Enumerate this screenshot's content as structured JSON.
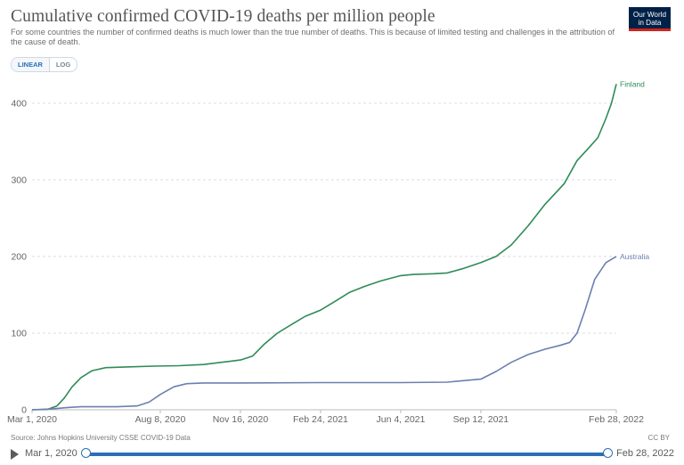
{
  "header": {
    "title": "Cumulative confirmed COVID-19 deaths per million people",
    "subtitle": "For some countries the number of confirmed deaths is much lower than the true number of deaths. This is because of limited testing and challenges in the attribution of the cause of death.",
    "logo_line1": "Our World",
    "logo_line2": "in Data"
  },
  "controls": {
    "linear_label": "LINEAR",
    "log_label": "LOG",
    "selected": "LINEAR"
  },
  "footer": {
    "source": "Source: Johns Hopkins University CSSE COVID-19 Data",
    "license": "CC BY"
  },
  "timeline": {
    "start_label": "Mar 1, 2020",
    "end_label": "Feb 28, 2022",
    "start_position": 0,
    "end_position": 1
  },
  "colors": {
    "finland": "#2e8b57",
    "australia": "#6d7fb0",
    "grid": "#dddddd",
    "accent": "#2c6fb5"
  },
  "chart_data": {
    "type": "line",
    "title": "Cumulative confirmed COVID-19 deaths per million people",
    "ylim": [
      0,
      430
    ],
    "yticks": [
      0,
      100,
      200,
      300,
      400
    ],
    "xlim": [
      "2020-03-01",
      "2022-02-28"
    ],
    "xticks": [
      {
        "date": "2020-03-01",
        "label": "Mar 1, 2020"
      },
      {
        "date": "2020-08-08",
        "label": "Aug 8, 2020"
      },
      {
        "date": "2020-11-16",
        "label": "Nov 16, 2020"
      },
      {
        "date": "2021-02-24",
        "label": "Feb 24, 2021"
      },
      {
        "date": "2021-06-04",
        "label": "Jun 4, 2021"
      },
      {
        "date": "2021-09-12",
        "label": "Sep 12, 2021"
      },
      {
        "date": "2022-02-28",
        "label": "Feb 28, 2022"
      }
    ],
    "grid": "horizontal",
    "legend": "end-of-line labels",
    "series": [
      {
        "name": "Finland",
        "color": "#2e8b57",
        "points": [
          [
            "2020-03-01",
            0
          ],
          [
            "2020-03-20",
            0.5
          ],
          [
            "2020-04-01",
            5
          ],
          [
            "2020-04-10",
            15
          ],
          [
            "2020-04-20",
            30
          ],
          [
            "2020-05-01",
            42
          ],
          [
            "2020-05-15",
            51
          ],
          [
            "2020-06-01",
            55
          ],
          [
            "2020-07-01",
            56
          ],
          [
            "2020-08-01",
            57
          ],
          [
            "2020-09-01",
            57.5
          ],
          [
            "2020-10-01",
            59
          ],
          [
            "2020-11-01",
            63
          ],
          [
            "2020-11-16",
            65
          ],
          [
            "2020-12-01",
            70
          ],
          [
            "2020-12-15",
            85
          ],
          [
            "2021-01-01",
            100
          ],
          [
            "2021-01-20",
            112
          ],
          [
            "2021-02-05",
            122
          ],
          [
            "2021-02-24",
            130
          ],
          [
            "2021-03-15",
            142
          ],
          [
            "2021-04-01",
            153
          ],
          [
            "2021-04-20",
            161
          ],
          [
            "2021-05-10",
            168
          ],
          [
            "2021-06-04",
            175
          ],
          [
            "2021-06-20",
            176.5
          ],
          [
            "2021-07-15",
            177.5
          ],
          [
            "2021-08-01",
            178.5
          ],
          [
            "2021-08-20",
            184
          ],
          [
            "2021-09-12",
            192
          ],
          [
            "2021-10-01",
            200
          ],
          [
            "2021-10-20",
            215
          ],
          [
            "2021-11-10",
            240
          ],
          [
            "2021-12-01",
            268
          ],
          [
            "2021-12-25",
            295
          ],
          [
            "2022-01-10",
            325
          ],
          [
            "2022-01-25",
            342
          ],
          [
            "2022-02-05",
            355
          ],
          [
            "2022-02-15",
            380
          ],
          [
            "2022-02-22",
            400
          ],
          [
            "2022-02-28",
            425
          ]
        ]
      },
      {
        "name": "Australia",
        "color": "#6d7fb0",
        "points": [
          [
            "2020-03-01",
            0
          ],
          [
            "2020-03-25",
            1
          ],
          [
            "2020-04-15",
            3
          ],
          [
            "2020-05-01",
            4
          ],
          [
            "2020-06-15",
            4
          ],
          [
            "2020-07-10",
            5
          ],
          [
            "2020-07-25",
            10
          ],
          [
            "2020-08-08",
            20
          ],
          [
            "2020-08-25",
            30
          ],
          [
            "2020-09-10",
            34
          ],
          [
            "2020-10-01",
            35
          ],
          [
            "2020-11-16",
            35
          ],
          [
            "2021-02-24",
            35.5
          ],
          [
            "2021-06-04",
            35.5
          ],
          [
            "2021-08-01",
            36
          ],
          [
            "2021-09-12",
            40
          ],
          [
            "2021-10-01",
            50
          ],
          [
            "2021-10-20",
            62
          ],
          [
            "2021-11-10",
            72
          ],
          [
            "2021-12-01",
            79
          ],
          [
            "2021-12-20",
            84
          ],
          [
            "2022-01-01",
            88
          ],
          [
            "2022-01-10",
            100
          ],
          [
            "2022-01-20",
            130
          ],
          [
            "2022-02-01",
            170
          ],
          [
            "2022-02-15",
            192
          ],
          [
            "2022-02-28",
            200
          ]
        ]
      }
    ]
  }
}
